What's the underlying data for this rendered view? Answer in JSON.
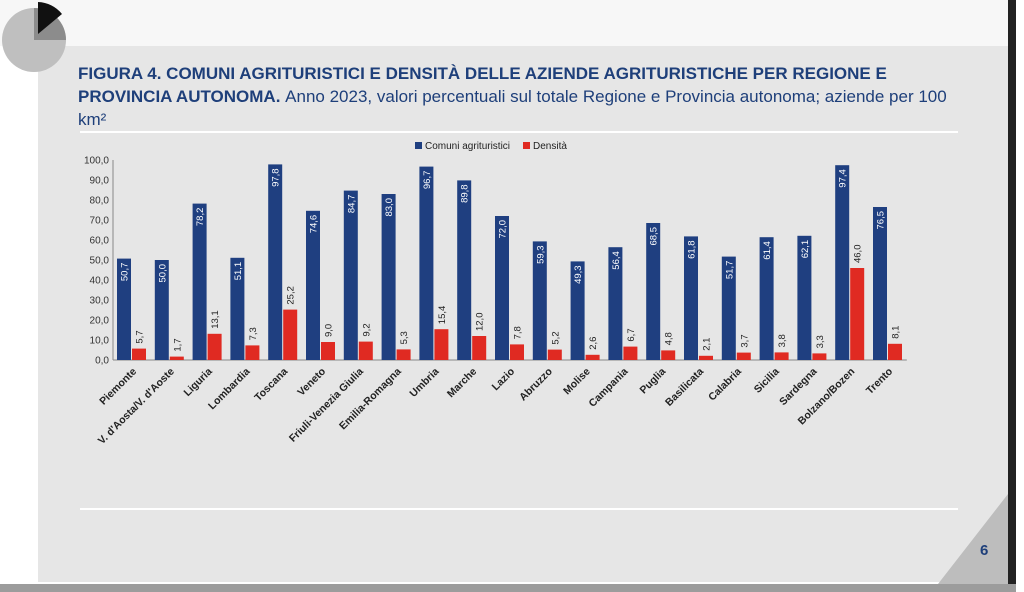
{
  "header": {
    "figure_label": "FIGURA 4.",
    "title_main": "COMUNI AGRITURISTICI E DENSITÀ DELLE AZIENDE AGRITURISTICHE PER REGIONE E PROVINCIA AUTONOMA.",
    "title_sub": "Anno 2023, valori percentuali sul totale Regione e Provincia autonoma; aziende per 100 km²"
  },
  "page_number": "6",
  "colors": {
    "title": "#1e3f7a",
    "series_blue": "#1f3f80",
    "series_red": "#e02a22"
  },
  "chart_data": {
    "type": "bar",
    "categories": [
      "Piemonte",
      "V. d'Aosta/V. d'Aoste",
      "Liguria",
      "Lombardia",
      "Toscana",
      "Veneto",
      "Friuli-Venezia Giulia",
      "Emilia-Romagna",
      "Umbria",
      "Marche",
      "Lazio",
      "Abruzzo",
      "Molise",
      "Campania",
      "Puglia",
      "Basilicata",
      "Calabria",
      "Sicilia",
      "Sardegna",
      "Bolzano/Bozen",
      "Trento"
    ],
    "series": [
      {
        "name": "Comuni agrituristici",
        "values": [
          50.7,
          50.0,
          78.2,
          51.1,
          97.8,
          74.6,
          84.7,
          83.0,
          96.7,
          89.8,
          72.0,
          59.3,
          49.3,
          56.4,
          68.5,
          61.8,
          51.7,
          61.4,
          62.1,
          97.4,
          76.5
        ],
        "labels": [
          "50,7",
          "50,0",
          "78,2",
          "51,1",
          "97,8",
          "74,6",
          "84,7",
          "83,0",
          "96,7",
          "89,8",
          "72,0",
          "59,3",
          "49,3",
          "56,4",
          "68,5",
          "61,8",
          "51,7",
          "61,4",
          "62,1",
          "97,4",
          "76,5"
        ]
      },
      {
        "name": "Densità",
        "values": [
          5.7,
          1.7,
          13.1,
          7.3,
          25.2,
          9.0,
          9.2,
          5.3,
          15.4,
          12.0,
          7.8,
          5.2,
          2.6,
          6.7,
          4.8,
          2.1,
          3.7,
          3.8,
          3.3,
          46.0,
          8.1
        ],
        "labels": [
          "5,7",
          "1,7",
          "13,1",
          "7,3",
          "25,2",
          "9,0",
          "9,2",
          "5,3",
          "15,4",
          "12,0",
          "7,8",
          "5,2",
          "2,6",
          "6,7",
          "4,8",
          "2,1",
          "3,7",
          "3,8",
          "3,3",
          "46,0",
          "8,1"
        ]
      }
    ],
    "yticks": [
      "0,0",
      "10,0",
      "20,0",
      "30,0",
      "40,0",
      "50,0",
      "60,0",
      "70,0",
      "80,0",
      "90,0",
      "100,0"
    ],
    "ylim": [
      0,
      100
    ],
    "legend_position": "top",
    "grid": false
  }
}
